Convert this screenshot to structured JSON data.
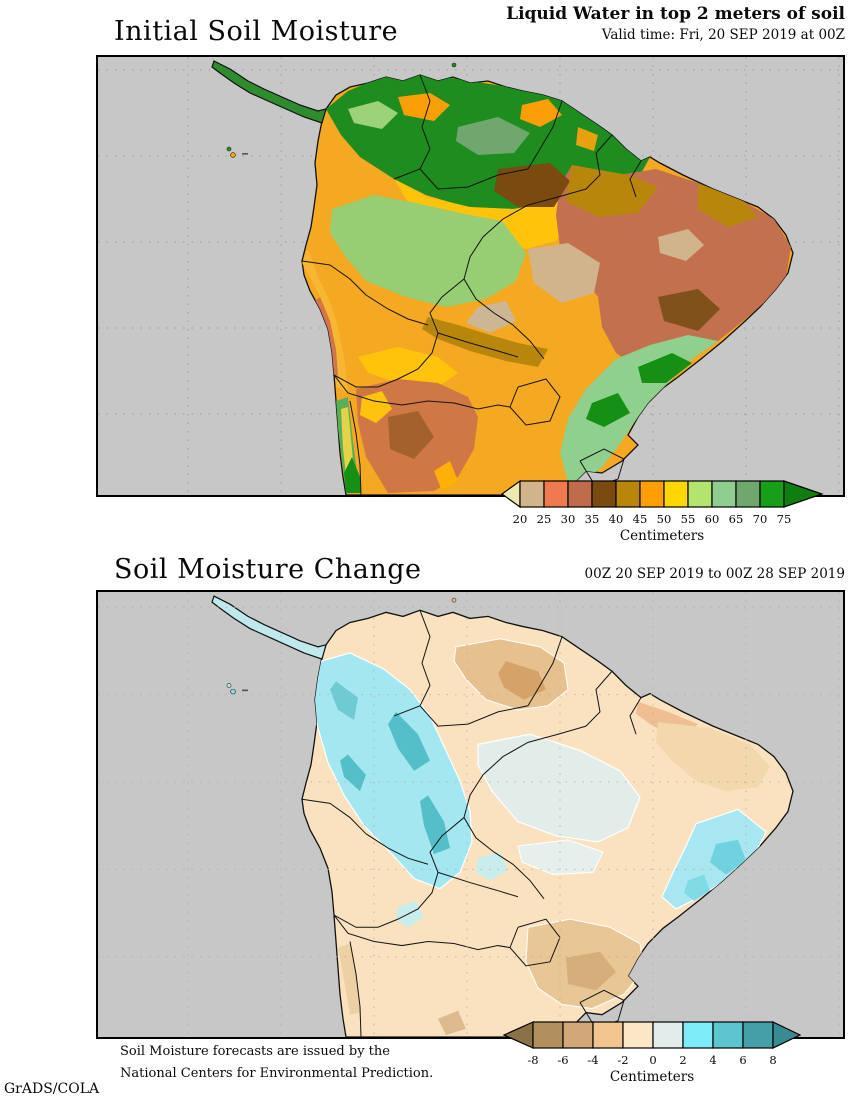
{
  "header": {
    "title": "Initial Soil Moisture",
    "subtitle": "Liquid Water in top 2 meters of soil",
    "valid_time": "Valid time: Fri, 20 SEP 2019 at 00Z"
  },
  "change_header": {
    "title": "Soil Moisture Change",
    "period": "00Z 20 SEP 2019 to 00Z 28 SEP 2019"
  },
  "footer": {
    "credit_line1": "Soil Moisture forecasts are issued by the",
    "credit_line2": "National Centers for Environmental Prediction.",
    "attribution": "GrADS/COLA"
  },
  "map_style": {
    "ocean_color": "#c7c7c7",
    "frame_color": "#000000",
    "grid_color": "#9b9b9b",
    "country_border_color": "#141414"
  },
  "chart_data": [
    {
      "type": "heatmap",
      "title": "Initial Soil Moisture",
      "region": "South America",
      "units": "Centimeters",
      "colorbar": {
        "ticks": [
          "20",
          "25",
          "30",
          "35",
          "40",
          "45",
          "50",
          "55",
          "60",
          "65",
          "70",
          "75"
        ],
        "segment_colors": [
          "#D2B48C",
          "#F07A50",
          "#BF6B4C",
          "#7B4A0E",
          "#B8860B",
          "#FFA000",
          "#FFD700",
          "#B3E46E",
          "#90CD90",
          "#6FA76F",
          "#17A017"
        ],
        "below_color": "#EDE8AF",
        "above_color": "#0E7E0E"
      }
    },
    {
      "type": "heatmap",
      "title": "Soil Moisture Change",
      "region": "South America",
      "units": "Centimeters",
      "colorbar": {
        "ticks": [
          "-8",
          "-6",
          "-4",
          "-2",
          "0",
          "2",
          "4",
          "6",
          "8"
        ],
        "segment_colors": [
          "#B2905E",
          "#D2A878",
          "#F2C48E",
          "#FBE7C6",
          "#E2ECEA",
          "#7DECF8",
          "#5CC5CE",
          "#459FA8"
        ],
        "below_color": "#8B7146",
        "above_color": "#3A8A93"
      }
    }
  ]
}
